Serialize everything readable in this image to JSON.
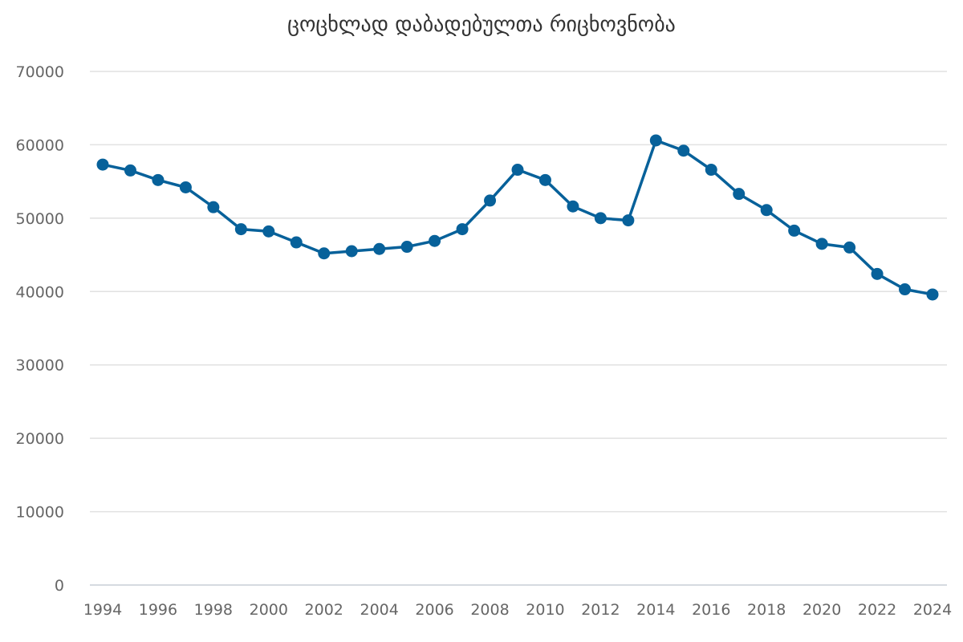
{
  "chart_data": {
    "type": "line",
    "title": "ცოცხლად დაბადებულთა რიცხოვნობა",
    "xlabel": "",
    "ylabel": "",
    "x": [
      1994,
      1995,
      1996,
      1997,
      1998,
      1999,
      2000,
      2001,
      2002,
      2003,
      2004,
      2005,
      2006,
      2007,
      2008,
      2009,
      2010,
      2011,
      2012,
      2013,
      2014,
      2015,
      2016,
      2017,
      2018,
      2019,
      2020,
      2021,
      2022,
      2023,
      2024
    ],
    "series": [
      {
        "values": [
          57300,
          56500,
          55200,
          54200,
          51500,
          48500,
          48200,
          46700,
          45200,
          45500,
          45800,
          46100,
          46900,
          48500,
          52400,
          56600,
          55200,
          51600,
          50000,
          49700,
          60600,
          59200,
          56600,
          53300,
          51100,
          48300,
          46500,
          46000,
          42400,
          40300,
          39600
        ],
        "color": "#07619a"
      }
    ],
    "ylim": [
      0,
      70000
    ],
    "xlim": [
      1994,
      2024
    ],
    "yticks": [
      0,
      10000,
      20000,
      30000,
      40000,
      50000,
      60000,
      70000
    ],
    "xticks": [
      1994,
      1996,
      1998,
      2000,
      2002,
      2004,
      2006,
      2008,
      2010,
      2012,
      2014,
      2016,
      2018,
      2020,
      2022,
      2024
    ],
    "grid": true,
    "legend": "none"
  }
}
